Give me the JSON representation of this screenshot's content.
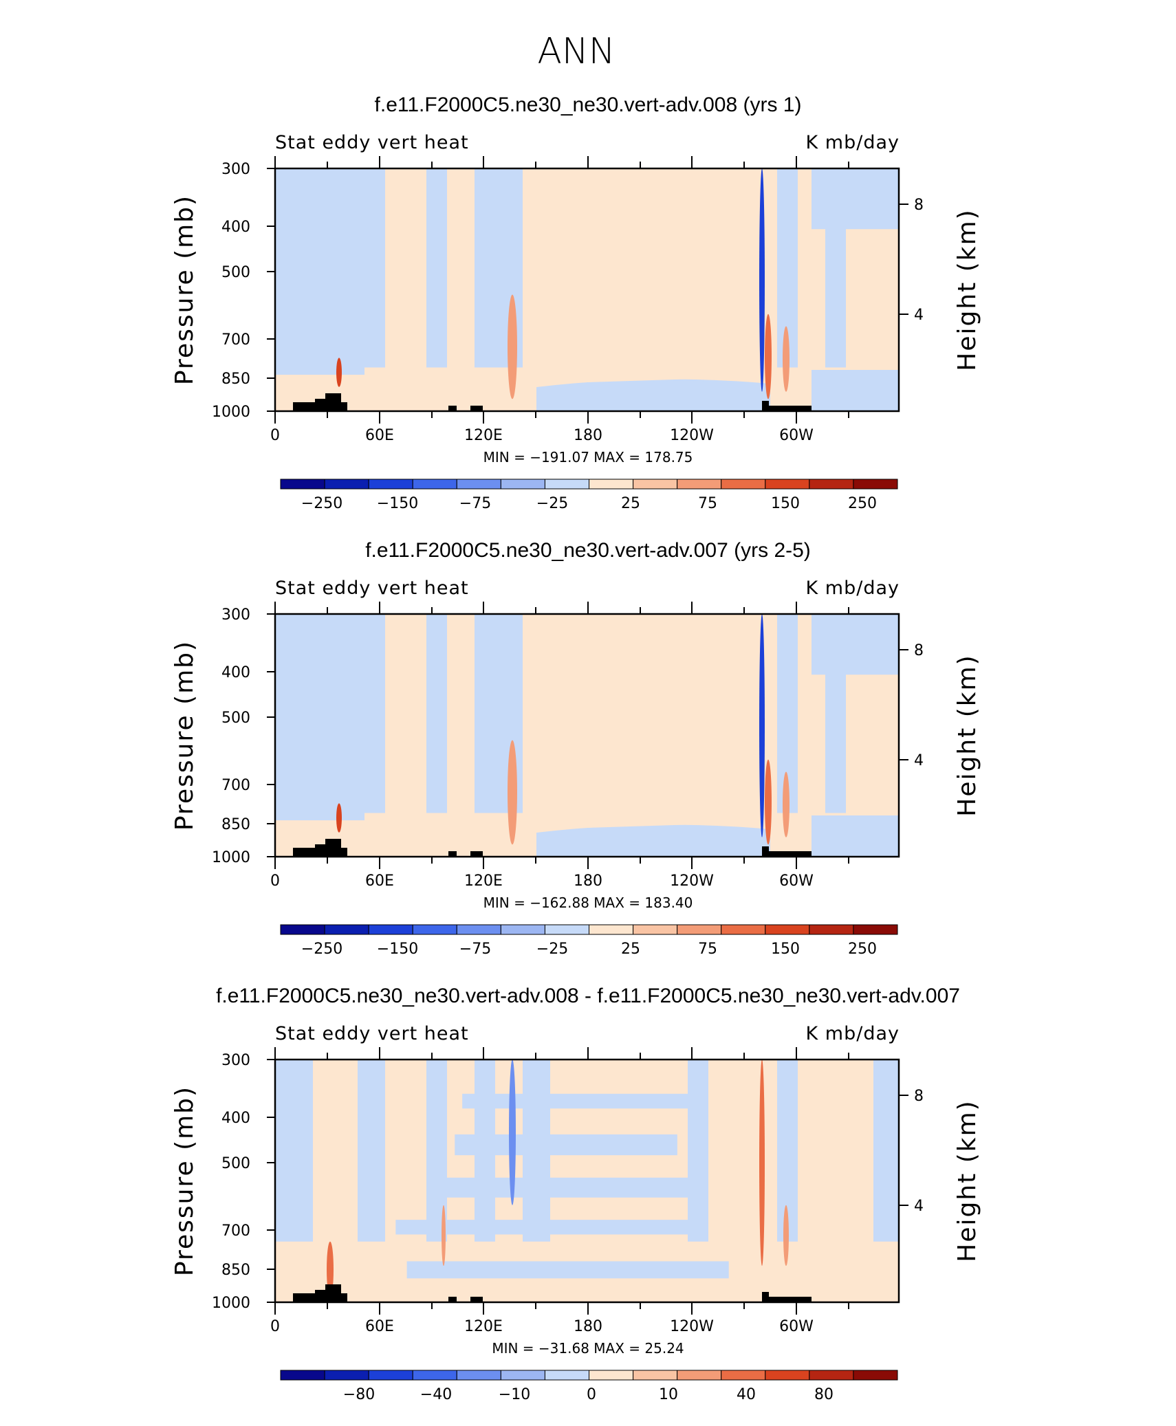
{
  "page_title": "ANN",
  "colors": {
    "ramp_steps": [
      "#08088c",
      "#0b1fb0",
      "#1c40d8",
      "#3d66ea",
      "#6c8ff0",
      "#9cb6f2",
      "#c6daf8",
      "#fde6cf",
      "#f9c4a4",
      "#f39c77",
      "#ea6d45",
      "#d9431f",
      "#b52512",
      "#8a0b06"
    ],
    "land": "#000000"
  },
  "chart_data": [
    {
      "type": "heatmap",
      "title": "f.e11.F2000C5.ne30_ne30.vert-adv.008 (yrs 1)",
      "left_label": "Stat eddy vert heat",
      "right_label": "K mb/day",
      "ylabel": "Pressure (mb)",
      "y2label": "Height (km)",
      "yticks": [
        "300",
        "400",
        "500",
        "700",
        "850",
        "1000"
      ],
      "y2ticks": [
        "8",
        "4"
      ],
      "xticks": [
        "0",
        "60E",
        "120E",
        "180",
        "120W",
        "60W"
      ],
      "minmax": "MIN = −191.07   MAX = 178.75",
      "colorbar_labels": [
        "−250",
        "−150",
        "−75",
        "−25",
        "25",
        "75",
        "150",
        "250"
      ],
      "min": -191.07,
      "max": 178.75
    },
    {
      "type": "heatmap",
      "title": "f.e11.F2000C5.ne30_ne30.vert-adv.007 (yrs 2-5)",
      "left_label": "Stat eddy vert heat",
      "right_label": "K mb/day",
      "ylabel": "Pressure (mb)",
      "y2label": "Height (km)",
      "yticks": [
        "300",
        "400",
        "500",
        "700",
        "850",
        "1000"
      ],
      "y2ticks": [
        "8",
        "4"
      ],
      "xticks": [
        "0",
        "60E",
        "120E",
        "180",
        "120W",
        "60W"
      ],
      "minmax": "MIN = −162.88   MAX = 183.40",
      "colorbar_labels": [
        "−250",
        "−150",
        "−75",
        "−25",
        "25",
        "75",
        "150",
        "250"
      ],
      "min": -162.88,
      "max": 183.4
    },
    {
      "type": "heatmap",
      "title": "f.e11.F2000C5.ne30_ne30.vert-adv.008 - f.e11.F2000C5.ne30_ne30.vert-adv.007",
      "left_label": "Stat eddy vert heat",
      "right_label": "K mb/day",
      "ylabel": "Pressure (mb)",
      "y2label": "Height (km)",
      "yticks": [
        "300",
        "400",
        "500",
        "700",
        "850",
        "1000"
      ],
      "y2ticks": [
        "8",
        "4"
      ],
      "xticks": [
        "0",
        "60E",
        "120E",
        "180",
        "120W",
        "60W"
      ],
      "minmax": "MIN = −31.68   MAX =   25.24",
      "colorbar_labels": [
        "−80",
        "−40",
        "−10",
        "0",
        "10",
        "40",
        "80"
      ],
      "min": -31.68,
      "max": 25.24
    }
  ]
}
